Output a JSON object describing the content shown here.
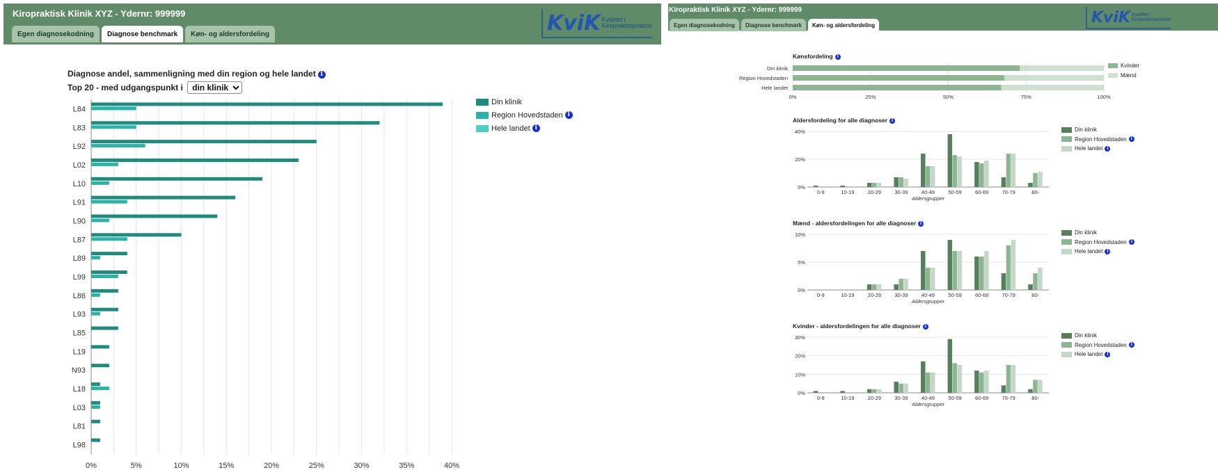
{
  "colors": {
    "header_bg": "#5f8b68",
    "tab_bg": "#a7c4ab",
    "info": "#1431d6"
  },
  "left": {
    "clinic_title": "Kiropraktisk Klinik XYZ - Ydernr: 999999",
    "tabs": [
      {
        "label": "Egen diagnosekodning",
        "active": false
      },
      {
        "label": "Diagnose benchmark",
        "active": true
      },
      {
        "label": "Køn- og aldersfordeling",
        "active": false
      }
    ],
    "logo": {
      "text": "KviK",
      "sub1": "Kvalitet i",
      "sub2": "Kiropraktorpraksis"
    },
    "chart_title": "Diagnose andel, sammenligning med din region og hele landet",
    "top20_prefix": "Top 20 - med udgangspunkt i",
    "select_value": "din klinik"
  },
  "right": {
    "clinic_title": "Kiropraktisk Klinik XYZ - Ydernr: 999999",
    "tabs": [
      {
        "label": "Egen diagnosekodning",
        "active": false
      },
      {
        "label": "Diagnose benchmark",
        "active": false
      },
      {
        "label": "Køn- og aldersfordeling",
        "active": true
      }
    ],
    "logo": {
      "text": "KviK",
      "sub1": "Kvalitet i",
      "sub2": "Kiropraktorpraksis"
    }
  },
  "chart_data": [
    {
      "type": "bar",
      "orientation": "horizontal",
      "title": "Diagnose andel, sammenligning med din region og hele landet",
      "categories": [
        "L84",
        "L83",
        "L92",
        "L02",
        "L10",
        "L91",
        "L90",
        "L87",
        "L89",
        "L99",
        "L86",
        "L93",
        "L85",
        "L19",
        "N93",
        "L18",
        "L03",
        "L81",
        "L98"
      ],
      "series": [
        {
          "name": "Din klinik",
          "color": "#1f8a7d",
          "values": [
            39,
            32,
            25,
            23,
            19,
            16,
            14,
            10,
            4,
            4,
            3,
            3,
            3,
            2,
            2,
            1,
            1,
            1,
            1
          ]
        },
        {
          "name": "Region Hovedstaden",
          "color": "#2bb3a6",
          "values": [
            5,
            5,
            6,
            3,
            2,
            4,
            2,
            4,
            1,
            3,
            1,
            1,
            0,
            0,
            0,
            2,
            1,
            0,
            0
          ]
        },
        {
          "name": "Hele landet",
          "color": "#4ecdc4",
          "values": [
            0,
            0,
            0,
            0,
            0,
            0,
            0,
            0,
            0,
            0,
            0,
            0,
            0,
            0,
            0,
            0,
            0,
            0,
            0
          ]
        }
      ],
      "ticks": [
        "0%",
        "5%",
        "10%",
        "15%",
        "20%",
        "25%",
        "30%",
        "35%",
        "40%"
      ],
      "xlim": [
        0,
        40
      ],
      "legend": "top-right",
      "grid": true
    },
    {
      "type": "bar",
      "orientation": "horizontal",
      "stacked": true,
      "title": "Kønsfordeling",
      "categories": [
        "Din klinik",
        "Region Hovedstaden",
        "Hele landet"
      ],
      "series": [
        {
          "name": "Kvinder",
          "color": "#8db592",
          "values": [
            73,
            68,
            67
          ]
        },
        {
          "name": "Mænd",
          "color": "#cfe0d1",
          "values": [
            27,
            32,
            33
          ]
        }
      ],
      "ticks": [
        "0%",
        "25%",
        "50%",
        "75%",
        "100%"
      ],
      "xlim": [
        0,
        100
      ],
      "legend": "top-right"
    },
    {
      "type": "bar",
      "title": "Aldersfordeling for alle diagnoser",
      "xlabel": "Aldersgrupper",
      "categories": [
        "0-9",
        "10-19",
        "20-29",
        "30-39",
        "40-49",
        "50-59",
        "60-69",
        "70-79",
        "80-"
      ],
      "series": [
        {
          "name": "Din klinik",
          "color": "#567f5e",
          "values": [
            1,
            1,
            3,
            7,
            24,
            38,
            18,
            7,
            3
          ]
        },
        {
          "name": "Region Hovedstaden",
          "color": "#8db592",
          "values": [
            0,
            0,
            3,
            7,
            15,
            23,
            17,
            24,
            10
          ]
        },
        {
          "name": "Hele landet",
          "color": "#c3d8c6",
          "values": [
            0,
            0,
            3,
            6,
            15,
            22,
            19,
            24,
            11
          ]
        }
      ],
      "ticks": [
        "0%",
        "20%",
        "40%"
      ],
      "ylim": [
        0,
        40
      ],
      "legend": "right",
      "grid": true
    },
    {
      "type": "bar",
      "title": "Mænd - aldersfordelingen for alle diagnoser",
      "xlabel": "Aldersgrupper",
      "categories": [
        "0-9",
        "10-19",
        "20-29",
        "30-39",
        "40-49",
        "50-59",
        "60-69",
        "70-79",
        "80-"
      ],
      "series": [
        {
          "name": "Din klinik",
          "color": "#567f5e",
          "values": [
            0,
            0,
            1,
            1,
            7,
            9,
            6,
            3,
            1
          ]
        },
        {
          "name": "Region Hovedstaden",
          "color": "#8db592",
          "values": [
            0,
            0,
            1,
            2,
            4,
            7,
            6,
            8,
            3
          ]
        },
        {
          "name": "Hele landet",
          "color": "#c3d8c6",
          "values": [
            0,
            0,
            1,
            2,
            4,
            7,
            7,
            9,
            4
          ]
        }
      ],
      "ticks": [
        "0%",
        "5%",
        "10%"
      ],
      "ylim": [
        0,
        10
      ],
      "legend": "right",
      "grid": true
    },
    {
      "type": "bar",
      "title": "Kvinder - aldersfordelingen for alle diagnoser",
      "xlabel": "Aldersgrupper",
      "categories": [
        "0-9",
        "10-19",
        "20-29",
        "30-39",
        "40-49",
        "50-59",
        "60-69",
        "70-79",
        "80-"
      ],
      "series": [
        {
          "name": "Din klinik",
          "color": "#567f5e",
          "values": [
            1,
            1,
            2,
            6,
            17,
            29,
            12,
            4,
            2
          ]
        },
        {
          "name": "Region Hovedstaden",
          "color": "#8db592",
          "values": [
            0,
            0,
            2,
            5,
            11,
            16,
            11,
            15,
            7
          ]
        },
        {
          "name": "Hele landet",
          "color": "#c3d8c6",
          "values": [
            0,
            0,
            2,
            5,
            11,
            15,
            12,
            15,
            7
          ]
        }
      ],
      "ticks": [
        "0%",
        "10%",
        "20%",
        "30%"
      ],
      "ylim": [
        0,
        30
      ],
      "legend": "right",
      "grid": true
    }
  ]
}
